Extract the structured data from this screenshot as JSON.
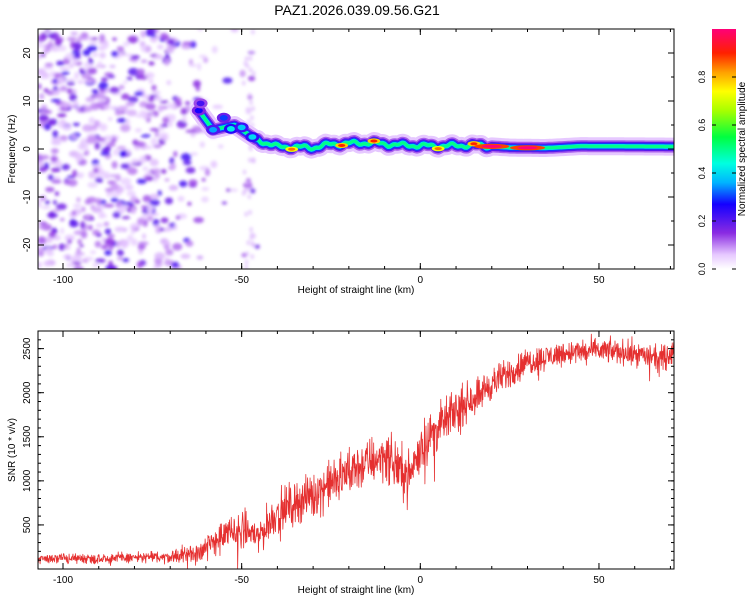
{
  "title": "PAZ1.2026.039.09.56.G21",
  "chart_data": [
    {
      "type": "heatmap",
      "xlabel": "Height of straight line (km)",
      "ylabel": "Frequency (Hz)",
      "xlim": [
        -107,
        71
      ],
      "ylim": [
        -25,
        25
      ],
      "x_ticks": [
        -100,
        -50,
        0,
        50
      ],
      "y_ticks": [
        -20,
        -10,
        0,
        10,
        20
      ],
      "colorbar": {
        "label": "Normalized spectral amplitude",
        "range": [
          0,
          1
        ],
        "ticks": [
          0.0,
          0.2,
          0.4,
          0.6,
          0.8
        ],
        "tick_labels": [
          "0.0",
          "0.2",
          "0.4",
          "0.6",
          "0.8"
        ]
      },
      "ridge": {
        "description_points_km_hz": [
          [
            -62,
            8
          ],
          [
            -58,
            4
          ],
          [
            -52,
            5
          ],
          [
            -46,
            2
          ],
          [
            -40,
            0.5
          ],
          [
            -30,
            0.3
          ],
          [
            -25,
            1.0
          ],
          [
            -15,
            1.3
          ],
          [
            -5,
            0.8
          ],
          [
            5,
            0.6
          ],
          [
            15,
            0.8
          ],
          [
            25,
            0.3
          ],
          [
            35,
            0.2
          ],
          [
            45,
            0.6
          ],
          [
            71,
            0.5
          ]
        ],
        "peak_amplitude_km": [
          [
            -36,
            0.85
          ],
          [
            -22,
            0.9
          ],
          [
            -13,
            0.9
          ],
          [
            5,
            0.85
          ],
          [
            15,
            0.9
          ],
          [
            20,
            1.0
          ],
          [
            30,
            1.0
          ]
        ]
      }
    },
    {
      "type": "line",
      "xlabel": "Height of straight line (km)",
      "ylabel": "SNR (10 * v/v)",
      "xlim": [
        -107,
        71
      ],
      "ylim": [
        0,
        2700
      ],
      "x_ticks": [
        -100,
        -50,
        0,
        50
      ],
      "y_ticks": [
        500,
        1000,
        1500,
        2000,
        2500
      ],
      "color": "#e53030",
      "trend_km_snr": [
        [
          -107,
          120
        ],
        [
          -90,
          120
        ],
        [
          -70,
          140
        ],
        [
          -62,
          200
        ],
        [
          -55,
          380
        ],
        [
          -50,
          450
        ],
        [
          -45,
          380
        ],
        [
          -40,
          650
        ],
        [
          -30,
          850
        ],
        [
          -20,
          1100
        ],
        [
          -10,
          1300
        ],
        [
          -3,
          1050
        ],
        [
          0,
          1400
        ],
        [
          10,
          1800
        ],
        [
          20,
          2100
        ],
        [
          30,
          2350
        ],
        [
          40,
          2450
        ],
        [
          50,
          2480
        ],
        [
          60,
          2450
        ],
        [
          67,
          2380
        ],
        [
          71,
          2450
        ]
      ],
      "noise_amplitude_km_snr": [
        [
          -107,
          60
        ],
        [
          -70,
          70
        ],
        [
          -55,
          200
        ],
        [
          -40,
          250
        ],
        [
          -20,
          300
        ],
        [
          0,
          300
        ],
        [
          20,
          200
        ],
        [
          40,
          150
        ],
        [
          71,
          150
        ]
      ]
    }
  ],
  "colors": {
    "line": "#e53030",
    "axis": "#000000",
    "background": "#ffffff"
  }
}
